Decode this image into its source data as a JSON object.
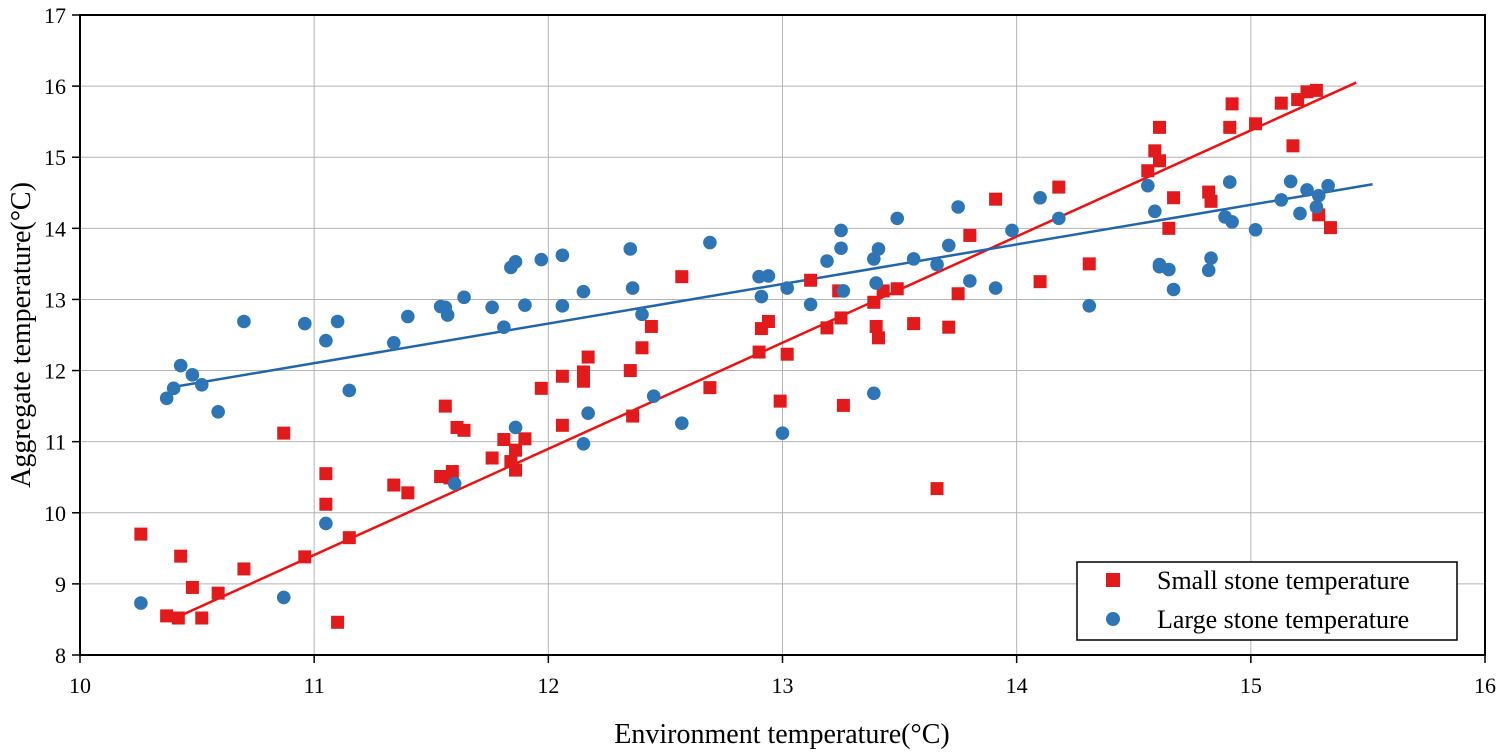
{
  "chart_data": {
    "type": "scatter",
    "title": "",
    "xlabel": "Environment temperature(°C)",
    "ylabel": "Aggregate temperature(°C)",
    "xlim": [
      10,
      16
    ],
    "ylim": [
      8,
      17
    ],
    "x_ticks": [
      "10",
      "11",
      "12",
      "13",
      "14",
      "15",
      "16"
    ],
    "y_ticks": [
      "8",
      "9",
      "10",
      "11",
      "12",
      "13",
      "14",
      "15",
      "16",
      "17"
    ],
    "grid": true,
    "legend_position": "bottom-right",
    "series": [
      {
        "name": "Small stone temperature",
        "marker": "square",
        "color": "#e31a1c",
        "points": [
          [
            10.26,
            9.7
          ],
          [
            10.37,
            8.55
          ],
          [
            10.42,
            8.52
          ],
          [
            10.43,
            9.39
          ],
          [
            10.48,
            8.95
          ],
          [
            10.52,
            8.52
          ],
          [
            10.59,
            8.87
          ],
          [
            10.7,
            9.21
          ],
          [
            10.87,
            11.12
          ],
          [
            10.96,
            9.38
          ],
          [
            11.05,
            10.55
          ],
          [
            11.05,
            10.12
          ],
          [
            11.1,
            8.46
          ],
          [
            11.15,
            9.65
          ],
          [
            11.34,
            10.39
          ],
          [
            11.4,
            10.28
          ],
          [
            11.54,
            10.51
          ],
          [
            11.56,
            11.5
          ],
          [
            11.58,
            10.49
          ],
          [
            11.59,
            10.58
          ],
          [
            11.61,
            11.2
          ],
          [
            11.64,
            11.16
          ],
          [
            11.76,
            10.77
          ],
          [
            11.81,
            11.03
          ],
          [
            11.84,
            10.72
          ],
          [
            11.86,
            10.6
          ],
          [
            11.86,
            10.88
          ],
          [
            11.9,
            11.04
          ],
          [
            11.97,
            11.75
          ],
          [
            12.06,
            11.92
          ],
          [
            12.06,
            11.23
          ],
          [
            12.15,
            11.98
          ],
          [
            12.15,
            11.85
          ],
          [
            12.17,
            12.19
          ],
          [
            12.35,
            12.0
          ],
          [
            12.36,
            11.36
          ],
          [
            12.4,
            12.32
          ],
          [
            12.44,
            12.62
          ],
          [
            12.57,
            13.32
          ],
          [
            12.69,
            11.76
          ],
          [
            12.9,
            12.26
          ],
          [
            12.91,
            12.59
          ],
          [
            12.94,
            12.69
          ],
          [
            12.99,
            11.57
          ],
          [
            13.02,
            12.23
          ],
          [
            13.12,
            13.27
          ],
          [
            13.19,
            12.6
          ],
          [
            13.24,
            13.12
          ],
          [
            13.25,
            12.74
          ],
          [
            13.26,
            11.51
          ],
          [
            13.39,
            12.96
          ],
          [
            13.4,
            12.62
          ],
          [
            13.41,
            12.46
          ],
          [
            13.43,
            13.12
          ],
          [
            13.49,
            13.15
          ],
          [
            13.56,
            12.66
          ],
          [
            13.66,
            10.34
          ],
          [
            13.71,
            12.61
          ],
          [
            13.75,
            13.08
          ],
          [
            13.8,
            13.9
          ],
          [
            13.91,
            14.41
          ],
          [
            14.1,
            13.25
          ],
          [
            14.18,
            14.58
          ],
          [
            14.31,
            13.5
          ],
          [
            14.56,
            14.81
          ],
          [
            14.59,
            15.09
          ],
          [
            14.61,
            14.95
          ],
          [
            14.61,
            15.42
          ],
          [
            14.65,
            14.0
          ],
          [
            14.67,
            14.43
          ],
          [
            14.82,
            14.51
          ],
          [
            14.83,
            14.38
          ],
          [
            14.91,
            15.42
          ],
          [
            14.92,
            15.75
          ],
          [
            15.02,
            15.47
          ],
          [
            15.13,
            15.76
          ],
          [
            15.18,
            15.16
          ],
          [
            15.2,
            15.81
          ],
          [
            15.24,
            15.92
          ],
          [
            15.28,
            15.94
          ],
          [
            15.29,
            14.19
          ],
          [
            15.34,
            14.01
          ]
        ],
        "trendline": [
          [
            10.4,
            8.51
          ],
          [
            15.45,
            16.05
          ]
        ]
      },
      {
        "name": "Large stone temperature",
        "marker": "circle",
        "color": "#2e75b6",
        "points": [
          [
            10.26,
            8.73
          ],
          [
            10.37,
            11.61
          ],
          [
            10.4,
            11.75
          ],
          [
            10.43,
            12.07
          ],
          [
            10.48,
            11.94
          ],
          [
            10.52,
            11.8
          ],
          [
            10.59,
            11.42
          ],
          [
            10.7,
            12.69
          ],
          [
            10.87,
            8.81
          ],
          [
            10.96,
            12.66
          ],
          [
            11.05,
            9.85
          ],
          [
            11.05,
            12.42
          ],
          [
            11.1,
            12.69
          ],
          [
            11.15,
            11.72
          ],
          [
            11.34,
            12.39
          ],
          [
            11.4,
            12.76
          ],
          [
            11.54,
            12.9
          ],
          [
            11.56,
            12.89
          ],
          [
            11.57,
            12.78
          ],
          [
            11.6,
            10.41
          ],
          [
            11.64,
            13.03
          ],
          [
            11.76,
            12.89
          ],
          [
            11.81,
            12.61
          ],
          [
            11.84,
            13.45
          ],
          [
            11.86,
            13.53
          ],
          [
            11.86,
            11.2
          ],
          [
            11.9,
            12.92
          ],
          [
            11.97,
            13.56
          ],
          [
            12.06,
            12.91
          ],
          [
            12.06,
            13.62
          ],
          [
            12.15,
            13.11
          ],
          [
            12.15,
            10.97
          ],
          [
            12.17,
            11.4
          ],
          [
            12.35,
            13.71
          ],
          [
            12.36,
            13.16
          ],
          [
            12.4,
            12.79
          ],
          [
            12.45,
            11.64
          ],
          [
            12.57,
            11.26
          ],
          [
            12.69,
            13.8
          ],
          [
            12.9,
            13.32
          ],
          [
            12.91,
            13.04
          ],
          [
            12.94,
            13.33
          ],
          [
            13.0,
            11.12
          ],
          [
            13.02,
            13.16
          ],
          [
            13.12,
            12.93
          ],
          [
            13.19,
            13.54
          ],
          [
            13.25,
            13.72
          ],
          [
            13.25,
            13.97
          ],
          [
            13.26,
            13.12
          ],
          [
            13.39,
            13.57
          ],
          [
            13.39,
            11.68
          ],
          [
            13.4,
            13.23
          ],
          [
            13.41,
            13.71
          ],
          [
            13.49,
            14.14
          ],
          [
            13.56,
            13.57
          ],
          [
            13.66,
            13.49
          ],
          [
            13.71,
            13.76
          ],
          [
            13.75,
            14.3
          ],
          [
            13.8,
            13.26
          ],
          [
            13.91,
            13.16
          ],
          [
            13.98,
            13.97
          ],
          [
            14.1,
            14.43
          ],
          [
            14.18,
            14.14
          ],
          [
            14.31,
            12.91
          ],
          [
            14.56,
            14.6
          ],
          [
            14.59,
            14.24
          ],
          [
            14.61,
            13.49
          ],
          [
            14.61,
            13.46
          ],
          [
            14.65,
            13.42
          ],
          [
            14.67,
            13.14
          ],
          [
            14.82,
            13.41
          ],
          [
            14.83,
            13.58
          ],
          [
            14.89,
            14.16
          ],
          [
            14.91,
            14.65
          ],
          [
            14.92,
            14.09
          ],
          [
            15.02,
            13.98
          ],
          [
            15.13,
            14.4
          ],
          [
            15.17,
            14.66
          ],
          [
            15.21,
            14.21
          ],
          [
            15.24,
            14.54
          ],
          [
            15.28,
            14.3
          ],
          [
            15.29,
            14.46
          ],
          [
            15.33,
            14.6
          ]
        ],
        "trendline": [
          [
            10.4,
            11.77
          ],
          [
            15.52,
            14.62
          ]
        ]
      }
    ]
  }
}
